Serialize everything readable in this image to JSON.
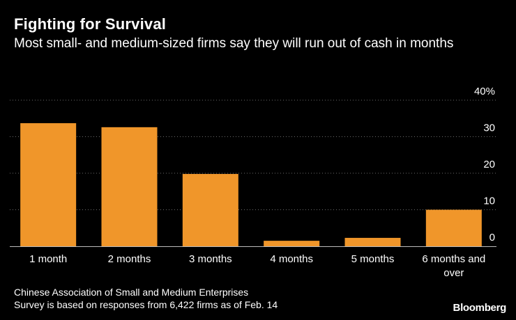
{
  "title": "Fighting for Survival",
  "subtitle": "Most small- and medium-sized firms say they will run out of cash in months",
  "source_lines": [
    "Chinese Association of Small and Medium Enterprises",
    "Survey is based on responses from 6,422 firms as of Feb. 14"
  ],
  "logo": "Bloomberg",
  "chart_data": {
    "type": "bar",
    "categories": [
      [
        "1 month"
      ],
      [
        "2 months"
      ],
      [
        "3 months"
      ],
      [
        "4 months"
      ],
      [
        "5 months"
      ],
      [
        "6 months and",
        "over"
      ]
    ],
    "values": [
      33.7,
      32.6,
      19.8,
      1.5,
      2.3,
      10.0
    ],
    "y_ticks": [
      {
        "value": 40,
        "label": "40%"
      },
      {
        "value": 30,
        "label": "30"
      },
      {
        "value": 20,
        "label": "20"
      },
      {
        "value": 10,
        "label": "10"
      },
      {
        "value": 0,
        "label": "0"
      }
    ],
    "ylim": [
      0,
      40
    ],
    "unit": "%",
    "bar_color": "#F0962A",
    "grid_color": "#6b6b6b",
    "axis_color": "#bdbdbd",
    "grid": true,
    "y_axis_position": "right"
  }
}
